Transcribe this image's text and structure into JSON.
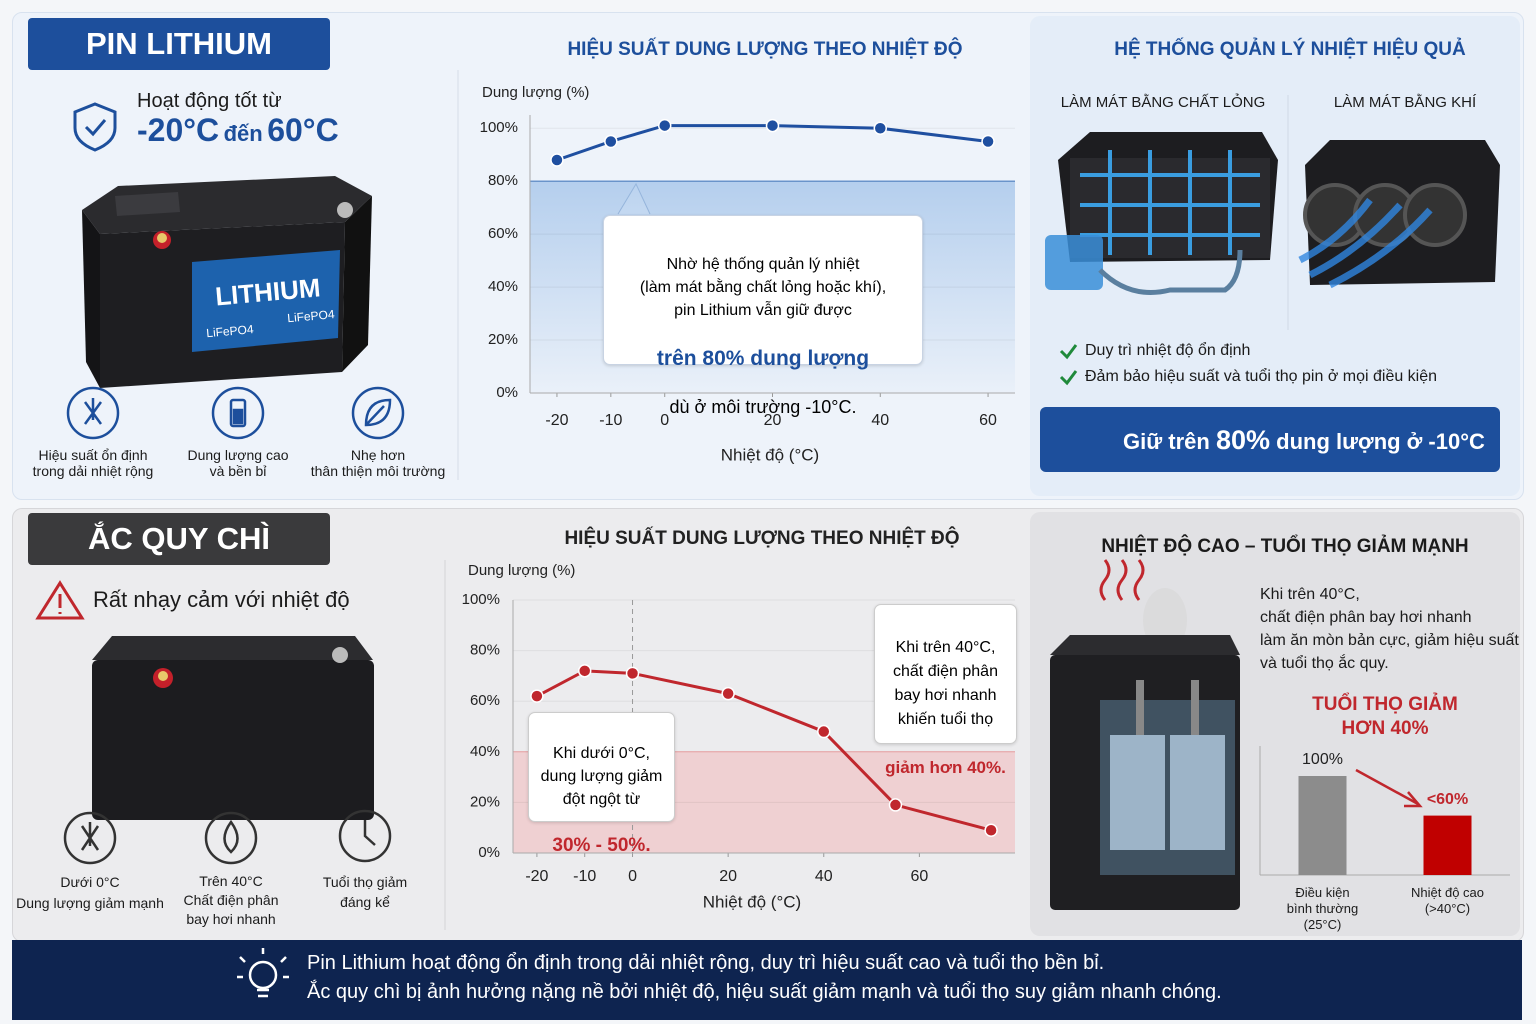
{
  "lithium": {
    "badge": "PIN LITHIUM",
    "intro": "Hoạt động tốt từ",
    "range_low": "-20°C",
    "range_word": "đến",
    "range_high": "60°C",
    "battery_label": "LITHIUM",
    "battery_sub": [
      "LiFePO4",
      "LiFePO4"
    ],
    "features": [
      "Hiệu suất ổn định\ntrong dải nhiệt rộng",
      "Dung lượng cao\nvà bền bỉ",
      "Nhẹ hơn\nthân thiện môi trường"
    ],
    "thermal": {
      "title": "HỆ THỐNG QUẢN LÝ NHIỆT HIỆU QUẢ",
      "liquid": "LÀM MÁT BẰNG CHẤT LỎNG",
      "air": "LÀM MÁT BẰNG KHÍ",
      "checks": [
        "Duy trì nhiệt độ ổn định",
        "Đảm bảo hiệu suất và tuổi thọ pin ở mọi điều kiện"
      ],
      "banner_pre": "Giữ trên",
      "banner_value": "80%",
      "banner_post": "dung lượng ở -10°C"
    }
  },
  "lead_acid": {
    "badge": "ẮC QUY CHÌ",
    "warning": "Rất nhạy cảm với nhiệt độ",
    "features": [
      "Dưới 0°C\nDung lượng giảm mạnh",
      "Trên 40°C\nChất điện phân\nbay hơi nhanh",
      "Tuổi thọ giảm\nđáng kể"
    ],
    "heat": {
      "title": "NHIỆT ĐỘ CAO – TUỔI THỌ GIẢM MẠNH",
      "text": "Khi trên 40°C,\nchất điện phân bay hơi nhanh\nlàm ăn mòn bản cực, giảm hiệu suất\nvà tuổi thọ ắc quy."
    }
  },
  "footer": {
    "lines": [
      "Pin Lithium hoạt động ổn định trong dải nhiệt rộng, duy trì hiệu suất cao và tuổi thọ bền bỉ.",
      "Ắc quy chì bị ảnh hưởng nặng nề bởi nhiệt độ, hiệu suất giảm mạnh và tuổi thọ suy giảm nhanh chóng."
    ]
  },
  "chart_data": [
    {
      "type": "line",
      "title": "HIỆU SUẤT DUNG LƯỢNG THEO NHIỆT ĐỘ",
      "y_label": "Dung lượng (%)",
      "x_label": "Nhiệt độ (°C)",
      "x": [
        -20,
        -10,
        0,
        20,
        40,
        60
      ],
      "values": [
        88,
        95,
        101,
        101,
        100,
        95
      ],
      "color": "#1f4fa0",
      "xlim": [
        -25,
        65
      ],
      "xticks": [
        -20,
        -10,
        0,
        20,
        40,
        60
      ],
      "ylim": [
        0,
        105
      ],
      "yticks": [
        {
          "value": 0,
          "label": "0%"
        },
        {
          "value": 20,
          "label": "20%"
        },
        {
          "value": 40,
          "label": "40%"
        },
        {
          "value": 60,
          "label": "60%"
        },
        {
          "value": 80,
          "label": "80%"
        },
        {
          "value": 100,
          "label": "100%"
        }
      ],
      "grid": true,
      "threshold": 80,
      "threshold_color": "#9cbfe8",
      "annotations": [
        {
          "text": "Nhờ hệ thống quản lý nhiệt\n(làm mát bằng chất lỏng hoặc khí),\npin Lithium vẫn giữ được",
          "highlight": "trên 80% dung lượng",
          "after": "dù ở môi trường -10°C."
        }
      ]
    },
    {
      "type": "line",
      "title": "HIỆU SUẤT DUNG LƯỢNG THEO NHIỆT ĐỘ",
      "y_label": "Dung lượng (%)",
      "x_label": "Nhiệt độ (°C)",
      "x": [
        -20,
        -10,
        0,
        20,
        40,
        55,
        75
      ],
      "values": [
        62,
        72,
        71,
        63,
        48,
        19,
        9
      ],
      "color": "#c0272d",
      "xlim": [
        -25,
        80
      ],
      "xticks": [
        -20,
        -10,
        0,
        20,
        40,
        60
      ],
      "ylim": [
        0,
        100
      ],
      "yticks": [
        {
          "value": 0,
          "label": "0%"
        },
        {
          "value": 20,
          "label": "20%"
        },
        {
          "value": 40,
          "label": "40%"
        },
        {
          "value": 60,
          "label": "60%"
        },
        {
          "value": 80,
          "label": "80%"
        },
        {
          "value": 100,
          "label": "100%"
        }
      ],
      "grid": true,
      "threshold": 40,
      "threshold_color": "#f2b9bb",
      "vline": 0,
      "annotations": [
        {
          "text": "Khi dưới 0°C,\ndung lượng giảm\nđột ngột từ",
          "highlight": "30% - 50%."
        },
        {
          "text": "Khi trên 40°C,\nchất điện phân\nbay hơi nhanh\nkhiến tuổi thọ",
          "highlight": "giảm hơn 40%."
        }
      ]
    },
    {
      "type": "bar",
      "title": "TUỔI THỌ GIẢM\nHƠN 40%",
      "categories": [
        "Điều kiện\nbình thường\n(25°C)",
        "Nhiệt độ cao\n(>40°C)"
      ],
      "values": [
        100,
        60
      ],
      "value_labels": [
        "100%",
        "<60%"
      ],
      "colors": [
        "#8c8c8c",
        "#c00000"
      ],
      "ylim": [
        0,
        100
      ]
    }
  ]
}
